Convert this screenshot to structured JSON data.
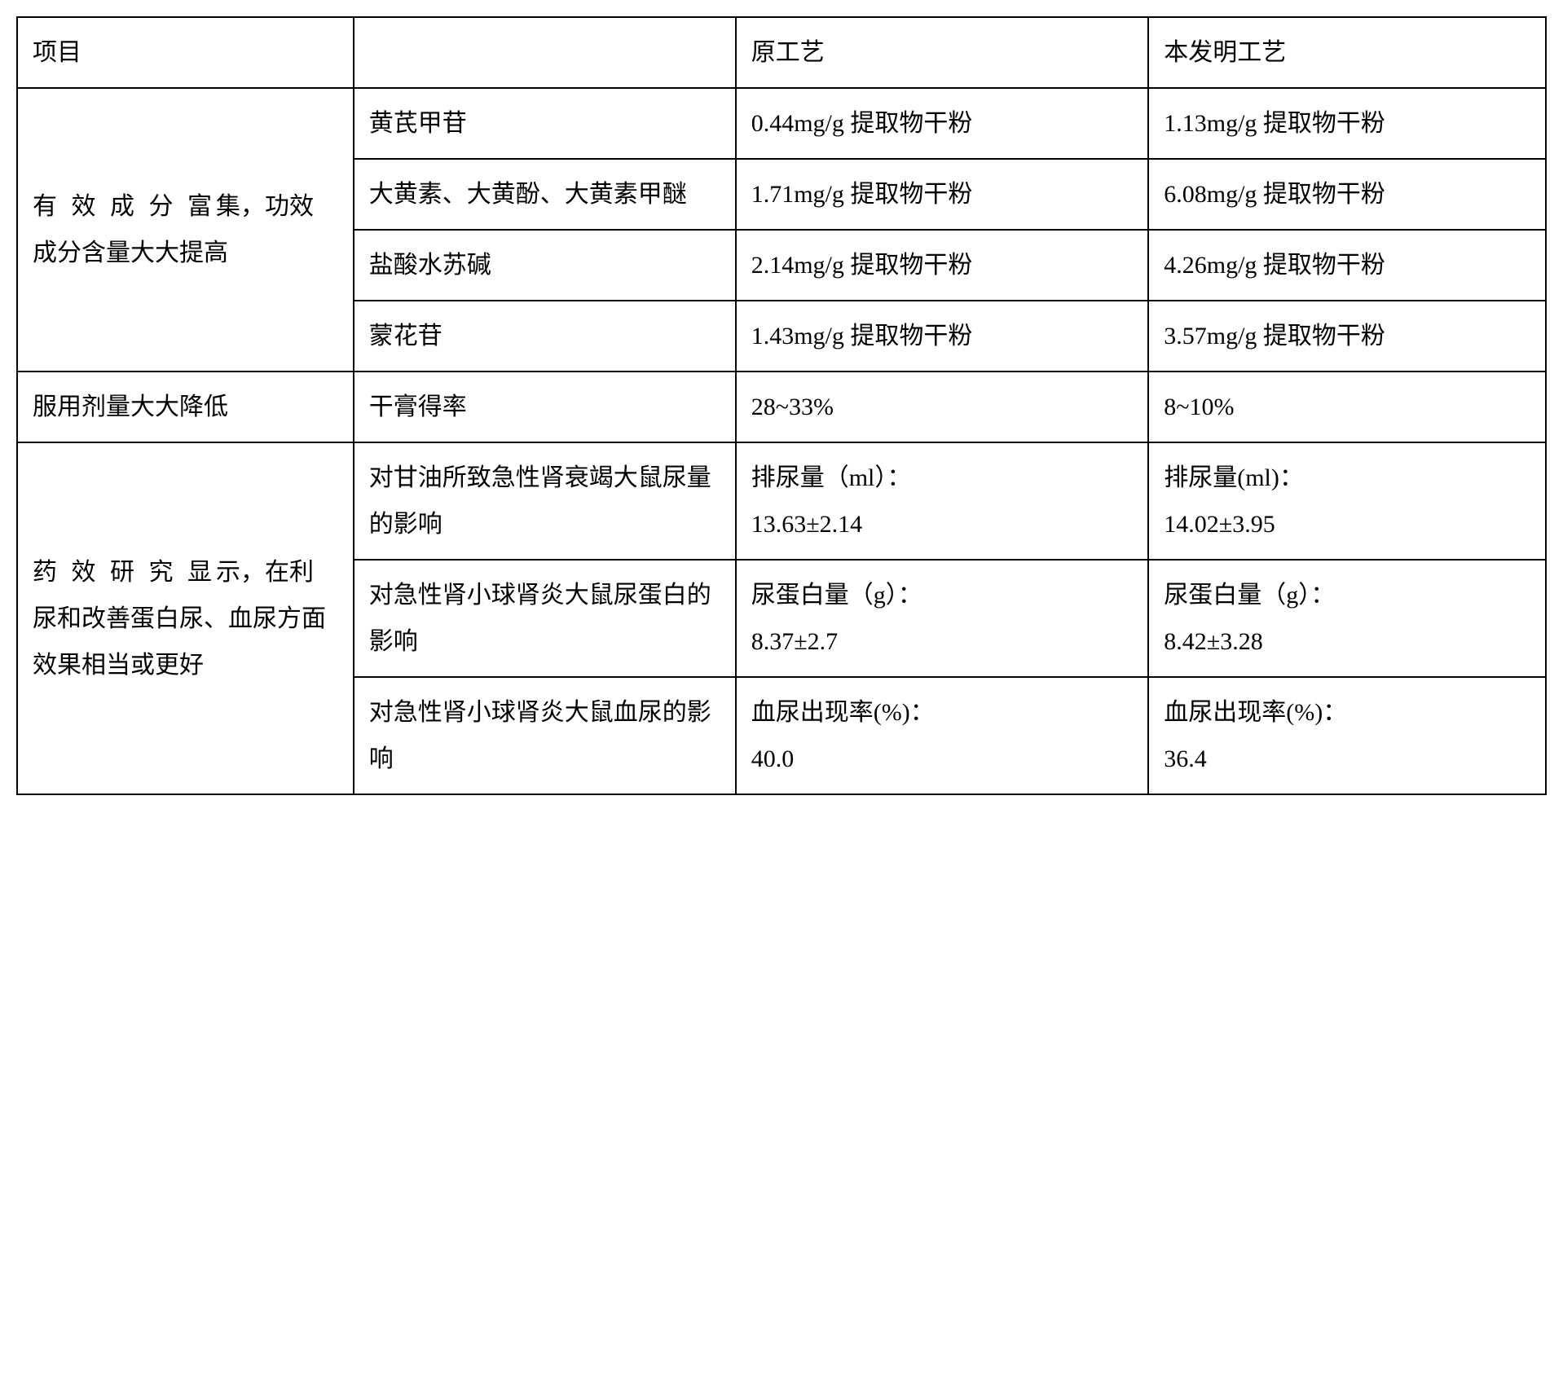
{
  "table": {
    "type": "table",
    "background_color": "#ffffff",
    "border_color": "#000000",
    "border_width": 2,
    "font_family": "SimSun",
    "font_size_pt": 22,
    "line_height": 1.9,
    "columns": [
      {
        "id": "project",
        "width_pct": 22
      },
      {
        "id": "component",
        "width_pct": 25
      },
      {
        "id": "original",
        "width_pct": 27
      },
      {
        "id": "invention",
        "width_pct": 26
      }
    ],
    "header": {
      "project": "项目",
      "blank": "",
      "original": "原工艺",
      "invention": "本发明工艺"
    },
    "group1": {
      "label": "有效成分富集，功效成分含量大大提高",
      "label_spaced_part": "有 效 成 分 富",
      "label_rest": "集，功效成分含量大大提高",
      "rows": [
        {
          "component": "黄芪甲苷",
          "original": "0.44mg/g 提取物干粉",
          "invention": "1.13mg/g 提取物干粉"
        },
        {
          "component": "大黄素、大黄酚、大黄素甲醚",
          "original": "1.71mg/g 提取物干粉",
          "invention": "6.08mg/g 提取物干粉"
        },
        {
          "component": "盐酸水苏碱",
          "original": "2.14mg/g 提取物干粉",
          "invention": "4.26mg/g 提取物干粉"
        },
        {
          "component": "蒙花苷",
          "original": "1.43mg/g 提取物干粉",
          "invention": "3.57mg/g 提取物干粉"
        }
      ]
    },
    "group2": {
      "label": "服用剂量大大降低",
      "rows": [
        {
          "component": "干膏得率",
          "original": "28~33%",
          "invention": "8~10%"
        }
      ]
    },
    "group3": {
      "label": "药效研究显示，在利尿和改善蛋白尿、血尿方面效果相当或更好",
      "label_spaced_part": "药 效 研 究 显",
      "label_rest": "示，在利尿和改善蛋白尿、血尿方面效果相当或更好",
      "rows": [
        {
          "component": "对甘油所致急性肾衰竭大鼠尿量的影响",
          "original": "排尿量（ml）：\n13.63±2.14",
          "invention": "排尿量(ml)：\n14.02±3.95"
        },
        {
          "component": "对急性肾小球肾炎大鼠尿蛋白的影响",
          "original": "尿蛋白量（g）：\n8.37±2.7",
          "invention": "尿蛋白量（g）：\n8.42±3.28"
        },
        {
          "component": "对急性肾小球肾炎大鼠血尿的影响",
          "original": "血尿出现率(%)：\n40.0",
          "invention": "血尿出现率(%)：\n36.4"
        }
      ]
    }
  }
}
